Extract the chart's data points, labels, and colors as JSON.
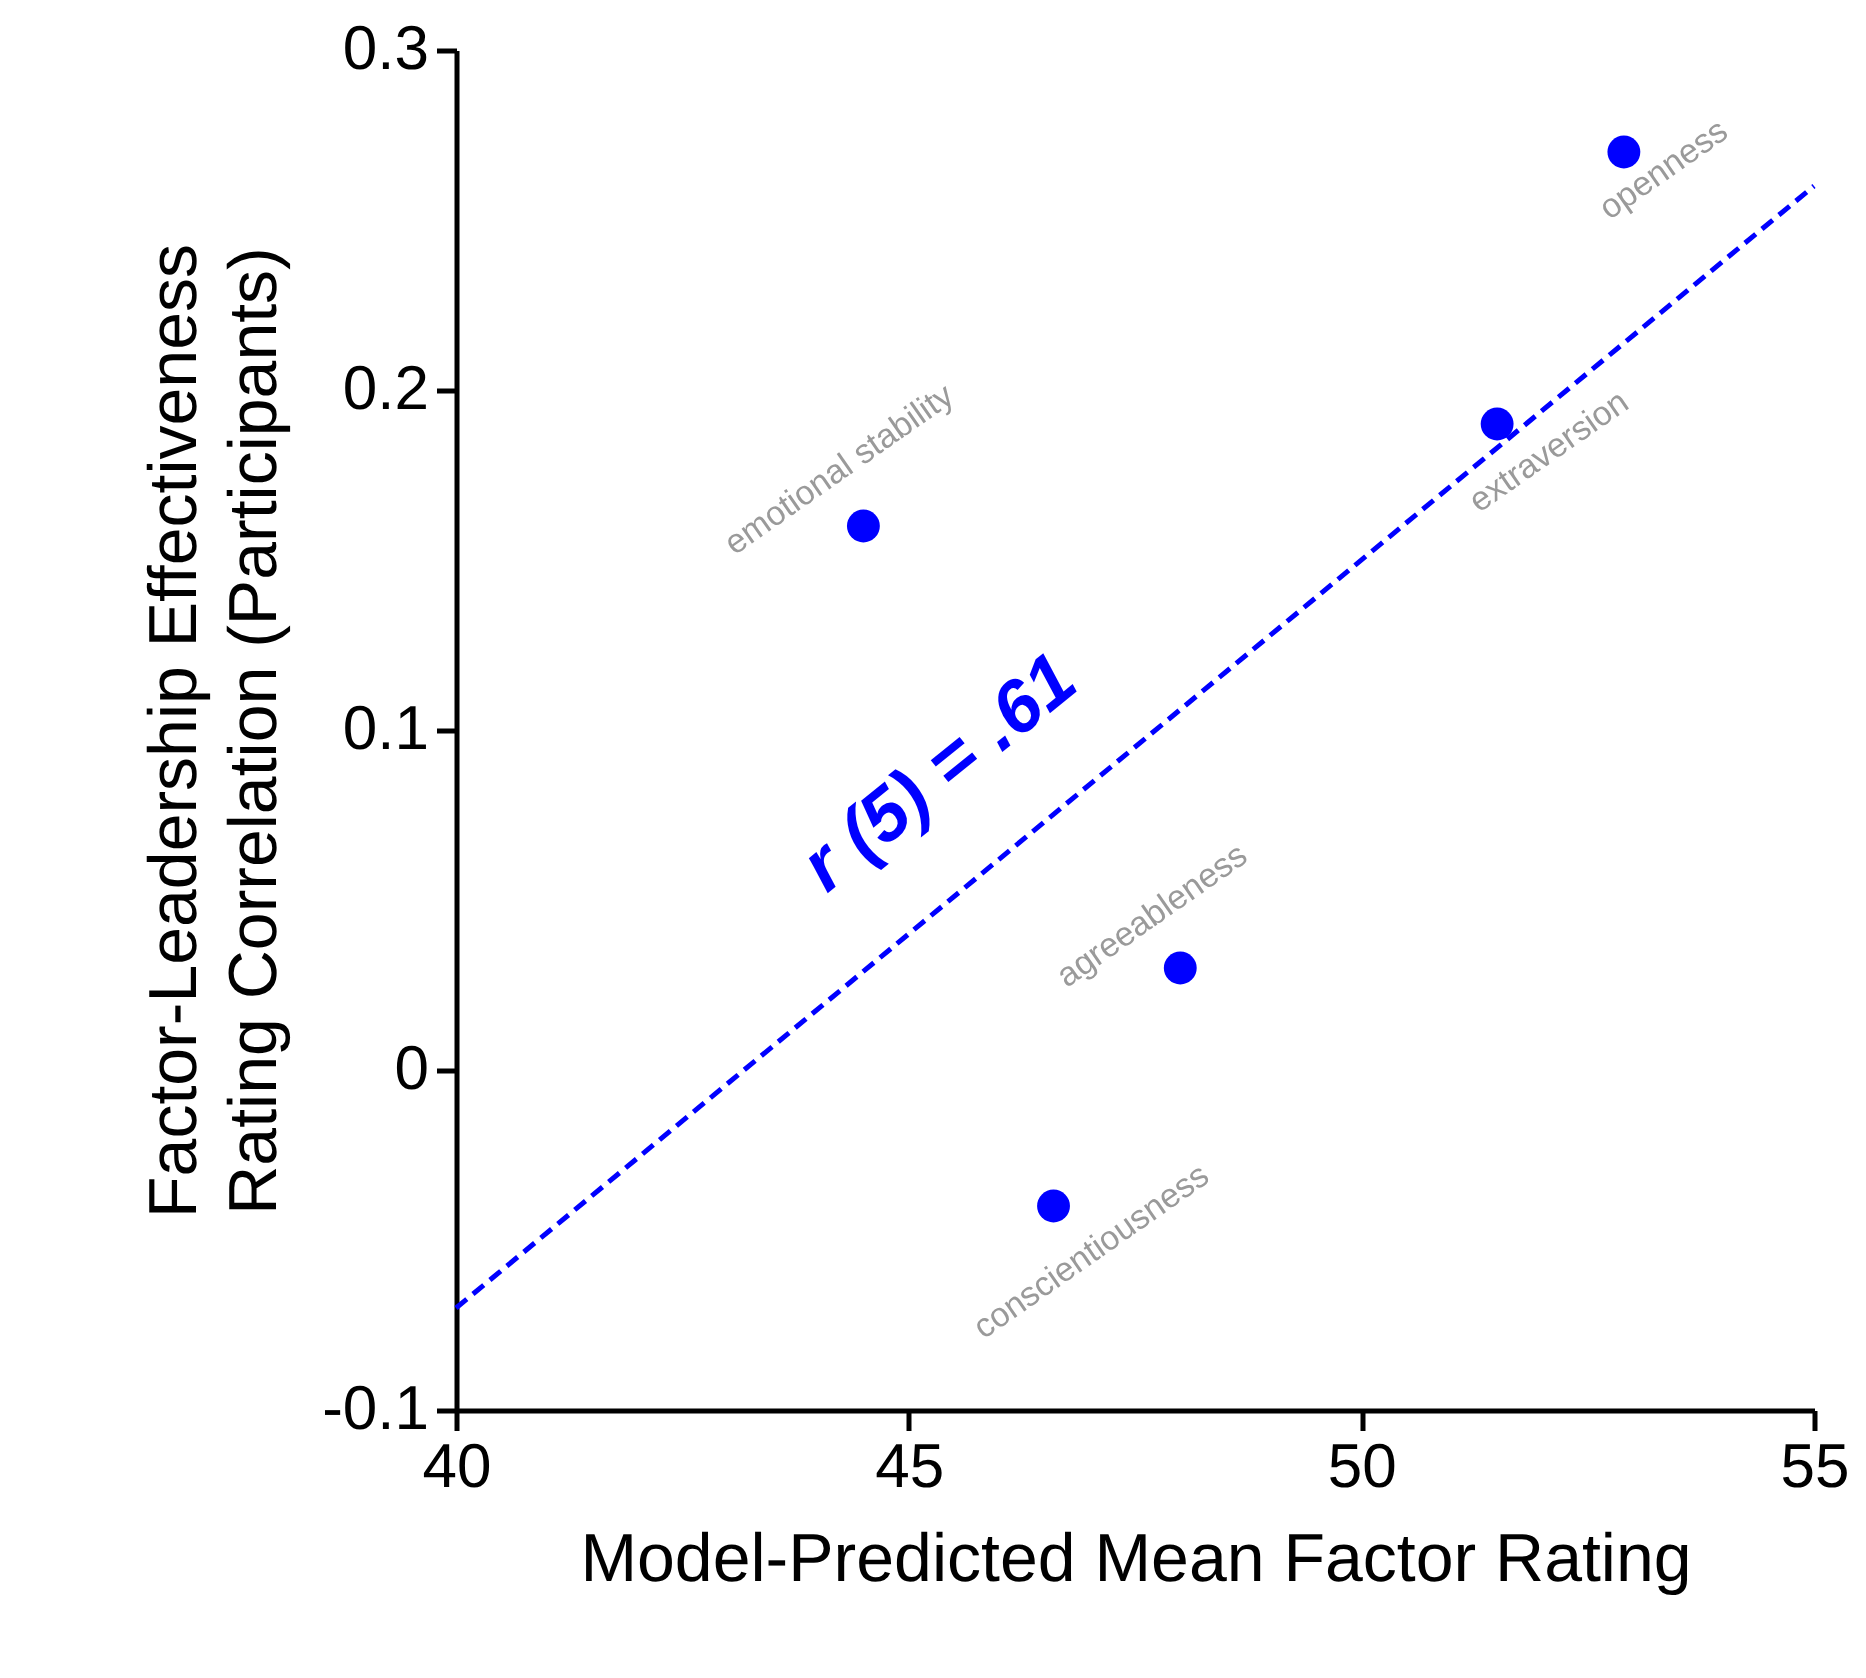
{
  "chart_data": {
    "type": "scatter",
    "xlabel": "Model-Predicted Mean Factor Rating",
    "ylabel": "Factor-Leadership Effectiveness\nRating Correlation (Participants)",
    "xlim": [
      40,
      55
    ],
    "ylim": [
      -0.1,
      0.3
    ],
    "xticks": [
      40,
      45,
      50,
      55
    ],
    "yticks": [
      {
        "value": -0.1,
        "label": "-0.1"
      },
      0,
      0.1,
      0.2,
      0.3
    ],
    "series": [
      {
        "marker": "circle",
        "color": "#0000ff",
        "x": [
          44.5,
          52.9,
          51.5,
          48.0,
          46.6
        ],
        "values": [
          0.16,
          0.27,
          0.19,
          0.03,
          -0.04
        ]
      },
      {
        "type": "line",
        "color": "#0000ff",
        "line_style": "dashed",
        "x": [
          40,
          55
        ],
        "values": [
          -0.07,
          0.26
        ]
      }
    ],
    "annotations": [
      {
        "text": "emotional stability",
        "x": 44.5,
        "y": 0.16
      },
      {
        "text": "openness",
        "x": 52.9,
        "y": 0.27
      },
      {
        "text": "extraversion",
        "x": 51.5,
        "y": 0.19
      },
      {
        "text": "agreeableness",
        "x": 48.0,
        "y": 0.03
      },
      {
        "text": "conscientiousness",
        "x": 46.6,
        "y": -0.04
      },
      "r (5) = .61"
    ]
  }
}
